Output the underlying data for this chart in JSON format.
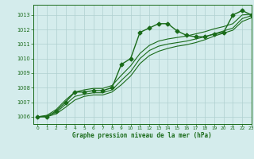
{
  "title": "Graphe pression niveau de la mer (hPa)",
  "bg_color": "#d4ecec",
  "grid_color": "#b0d0d0",
  "line_color": "#1a6b1a",
  "xlim": [
    -0.5,
    23
  ],
  "ylim": [
    1005.5,
    1013.7
  ],
  "yticks": [
    1006,
    1007,
    1008,
    1009,
    1010,
    1011,
    1012,
    1013
  ],
  "xticks": [
    0,
    1,
    2,
    3,
    4,
    5,
    6,
    7,
    8,
    9,
    10,
    11,
    12,
    13,
    14,
    15,
    16,
    17,
    18,
    19,
    20,
    21,
    22,
    23
  ],
  "series": [
    {
      "x": [
        0,
        1,
        2,
        3,
        4,
        5,
        6,
        7,
        8,
        9,
        10,
        11,
        12,
        13,
        14,
        15,
        16,
        17,
        18,
        19,
        20,
        21,
        22,
        23
      ],
      "y": [
        1006.0,
        1006.0,
        1006.4,
        1007.0,
        1007.7,
        1007.7,
        1007.8,
        1007.8,
        1008.0,
        1009.6,
        1010.0,
        1011.8,
        1012.1,
        1012.4,
        1012.4,
        1011.9,
        1011.6,
        1011.5,
        1011.5,
        1011.7,
        1011.8,
        1013.0,
        1013.3,
        1013.0
      ],
      "marker": true,
      "linewidth": 1.0,
      "markersize": 2.5
    },
    {
      "x": [
        0,
        1,
        2,
        3,
        4,
        5,
        6,
        7,
        8,
        9,
        10,
        11,
        12,
        13,
        14,
        15,
        16,
        17,
        18,
        19,
        20,
        21,
        22,
        23
      ],
      "y": [
        1006.0,
        1006.05,
        1006.3,
        1006.85,
        1007.4,
        1007.55,
        1007.65,
        1007.65,
        1007.85,
        1008.5,
        1009.1,
        1010.0,
        1010.55,
        1010.85,
        1011.0,
        1011.1,
        1011.2,
        1011.35,
        1011.5,
        1011.7,
        1011.9,
        1012.1,
        1012.75,
        1012.95
      ],
      "marker": false,
      "linewidth": 0.8
    },
    {
      "x": [
        0,
        1,
        2,
        3,
        4,
        5,
        6,
        7,
        8,
        9,
        10,
        11,
        12,
        13,
        14,
        15,
        16,
        17,
        18,
        19,
        20,
        21,
        22,
        23
      ],
      "y": [
        1006.0,
        1006.0,
        1006.2,
        1006.65,
        1007.15,
        1007.4,
        1007.5,
        1007.5,
        1007.7,
        1008.2,
        1008.8,
        1009.65,
        1010.2,
        1010.5,
        1010.7,
        1010.85,
        1010.95,
        1011.1,
        1011.3,
        1011.55,
        1011.75,
        1011.95,
        1012.55,
        1012.8
      ],
      "marker": false,
      "linewidth": 0.8
    },
    {
      "x": [
        0,
        1,
        2,
        3,
        4,
        5,
        6,
        7,
        8,
        9,
        10,
        11,
        12,
        13,
        14,
        15,
        16,
        17,
        18,
        19,
        20,
        21,
        22,
        23
      ],
      "y": [
        1006.0,
        1006.1,
        1006.5,
        1007.15,
        1007.7,
        1007.85,
        1007.95,
        1007.95,
        1008.15,
        1008.85,
        1009.5,
        1010.35,
        1010.9,
        1011.2,
        1011.35,
        1011.45,
        1011.55,
        1011.7,
        1011.85,
        1012.05,
        1012.2,
        1012.4,
        1013.0,
        1013.05
      ],
      "marker": false,
      "linewidth": 0.8
    }
  ]
}
